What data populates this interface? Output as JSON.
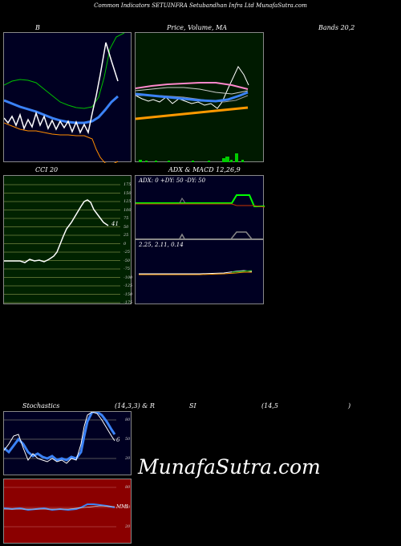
{
  "header": {
    "title": "Common Indicators SETUINFRA Setubandhan Infra Ltd MunafaSutra.com"
  },
  "panel_labels": {
    "bollinger": "B",
    "price_ma": "Price, Volume, MA",
    "bands": "Bands 20,2",
    "cci": "CCI 20",
    "adx_macd": "ADX & MACD 12,26,9",
    "stochastics": "Stochastics",
    "stoch_params": "(14,3,3) & R",
    "rsi": "SI",
    "rsi_params": "(14,5",
    "rsi_close": ")"
  },
  "cci": {
    "ticks": [
      "175",
      "150",
      "125",
      "100",
      "75",
      "50",
      "25",
      "0",
      "-25",
      "-50",
      "-75",
      "-100",
      "-125",
      "-150",
      "-175"
    ],
    "value_label": "41"
  },
  "adx": {
    "readout": "ADX: 0  +DY: 50  -DY: 50"
  },
  "macd": {
    "readout": "2.25,  2.11,  0.14"
  },
  "stochastics": {
    "ticks": [
      "80",
      "50",
      "20"
    ],
    "value_label": "6"
  },
  "rsi": {
    "ticks": [
      "80",
      "50",
      "20"
    ],
    "value_label": "MMI"
  },
  "colors": {
    "bollinger_bg": "#000022",
    "price_bg": "#001a00",
    "cci_bg": "#002200",
    "adx_bg": "#000022",
    "rsi_bg": "#8b0000",
    "accent_blue": "#3b82f6",
    "accent_green": "#00ff00",
    "accent_orange": "#ff9900"
  },
  "watermark": "MunafaSutra.com"
}
